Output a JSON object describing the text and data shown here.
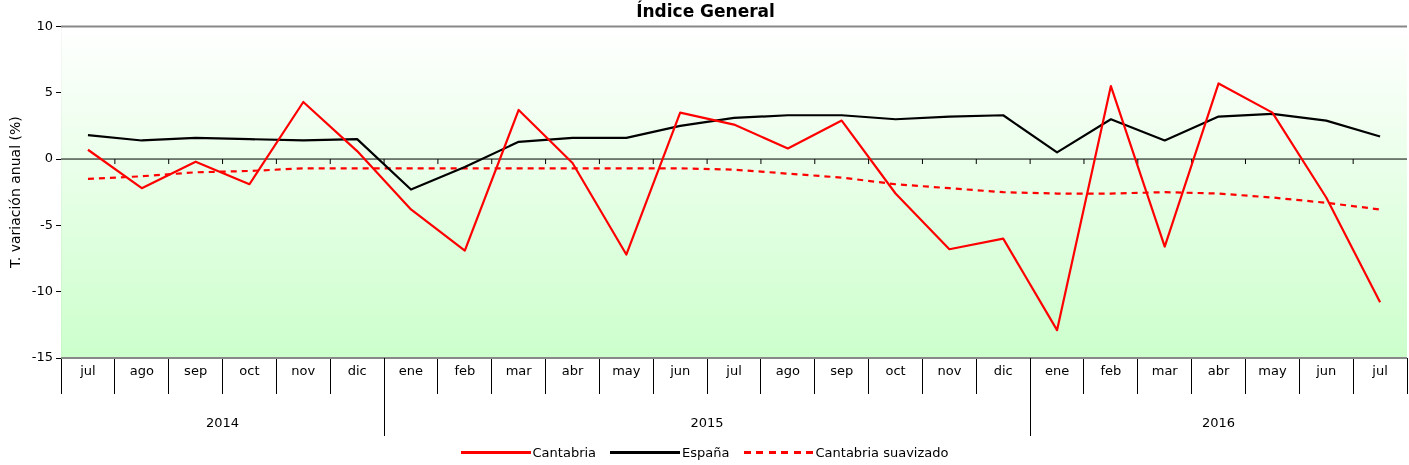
{
  "chart_data": {
    "type": "line",
    "title": "Índice General",
    "ylabel": "T. variación anual (%)",
    "categories": [
      "jul",
      "ago",
      "sep",
      "oct",
      "nov",
      "dic",
      "ene",
      "feb",
      "mar",
      "abr",
      "may",
      "jun",
      "jul",
      "ago",
      "sep",
      "oct",
      "nov",
      "dic",
      "ene",
      "feb",
      "mar",
      "abr",
      "may",
      "jun",
      "jul"
    ],
    "annotations": [
      "2014",
      "2015",
      "2016"
    ],
    "series": [
      {
        "name": "Cantabria",
        "color": "#ff0000",
        "line_style": "solid",
        "values": [
          0.7,
          -2.2,
          -0.2,
          -1.9,
          4.3,
          0.6,
          -3.8,
          -6.9,
          3.7,
          -0.3,
          -7.2,
          3.5,
          2.6,
          0.8,
          2.9,
          -2.6,
          -6.8,
          -6.0,
          -12.9,
          5.5,
          -6.6,
          5.7,
          3.5,
          -2.9,
          -10.8
        ]
      },
      {
        "name": "España",
        "color": "#000000",
        "line_style": "solid",
        "values": [
          1.8,
          1.4,
          1.6,
          1.5,
          1.4,
          1.5,
          -2.3,
          -0.6,
          1.3,
          1.6,
          1.6,
          2.5,
          3.1,
          3.3,
          3.3,
          3.0,
          3.2,
          3.3,
          0.5,
          3.0,
          1.4,
          3.2,
          3.4,
          2.9,
          1.7
        ]
      },
      {
        "name": "Cantabria suavizado",
        "color": "#ff0000",
        "line_style": "dashed",
        "values": [
          -1.5,
          -1.3,
          -1.0,
          -0.9,
          -0.7,
          -0.7,
          -0.7,
          -0.7,
          -0.7,
          -0.7,
          -0.7,
          -0.7,
          -0.8,
          -1.1,
          -1.4,
          -1.9,
          -2.2,
          -2.5,
          -2.6,
          -2.6,
          -2.5,
          -2.6,
          -2.9,
          -3.3,
          -3.8
        ]
      }
    ],
    "ylim": [
      -15,
      10
    ],
    "yticks": [
      -15,
      -10,
      -5,
      0,
      5,
      10
    ],
    "ref_lines": [
      {
        "axis": "y",
        "value": 0,
        "color": "#000000"
      }
    ],
    "grid": false,
    "legend": "bottom",
    "marker": "none"
  }
}
